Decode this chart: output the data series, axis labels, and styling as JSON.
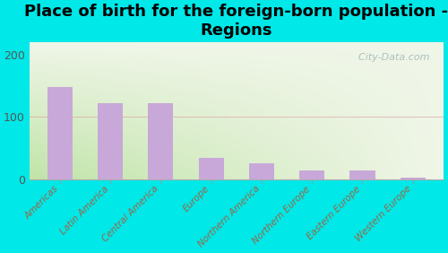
{
  "title": "Place of birth for the foreign-born population -\nRegions",
  "categories": [
    "Americas",
    "Latin America",
    "Central America",
    "Europe",
    "Northern America",
    "Northern Europe",
    "Eastern Europe",
    "Western Europe"
  ],
  "values": [
    148,
    122,
    122,
    35,
    26,
    14,
    14,
    3
  ],
  "bar_color": "#c8a8d8",
  "background_outer": "#00e8e8",
  "background_inner_topleft": "#e8f5d8",
  "background_inner_bottomleft": "#c8e8b0",
  "background_inner_right": "#f5f8ee",
  "ylim": [
    0,
    220
  ],
  "yticks": [
    0,
    100,
    200
  ],
  "ytick_color": "#555555",
  "xtick_color": "#996644",
  "watermark": "  City-Data.com",
  "title_fontsize": 13,
  "bar_width": 0.5,
  "figsize": [
    5.0,
    2.82
  ],
  "dpi": 100
}
